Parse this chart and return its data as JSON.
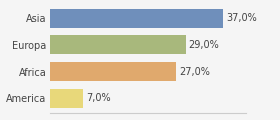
{
  "categories": [
    "Asia",
    "Europa",
    "Africa",
    "America"
  ],
  "values": [
    37.0,
    29.0,
    27.0,
    7.0
  ],
  "bar_colors": [
    "#6f8fbb",
    "#a8b87c",
    "#e0a96d",
    "#e8d87a"
  ],
  "labels": [
    "37,0%",
    "29,0%",
    "27,0%",
    "7,0%"
  ],
  "xlim": [
    0,
    42
  ],
  "background_color": "#f5f5f5",
  "label_fontsize": 7.0,
  "tick_fontsize": 7.0,
  "bar_height": 0.72,
  "figwidth": 2.8,
  "figheight": 1.2,
  "dpi": 100
}
